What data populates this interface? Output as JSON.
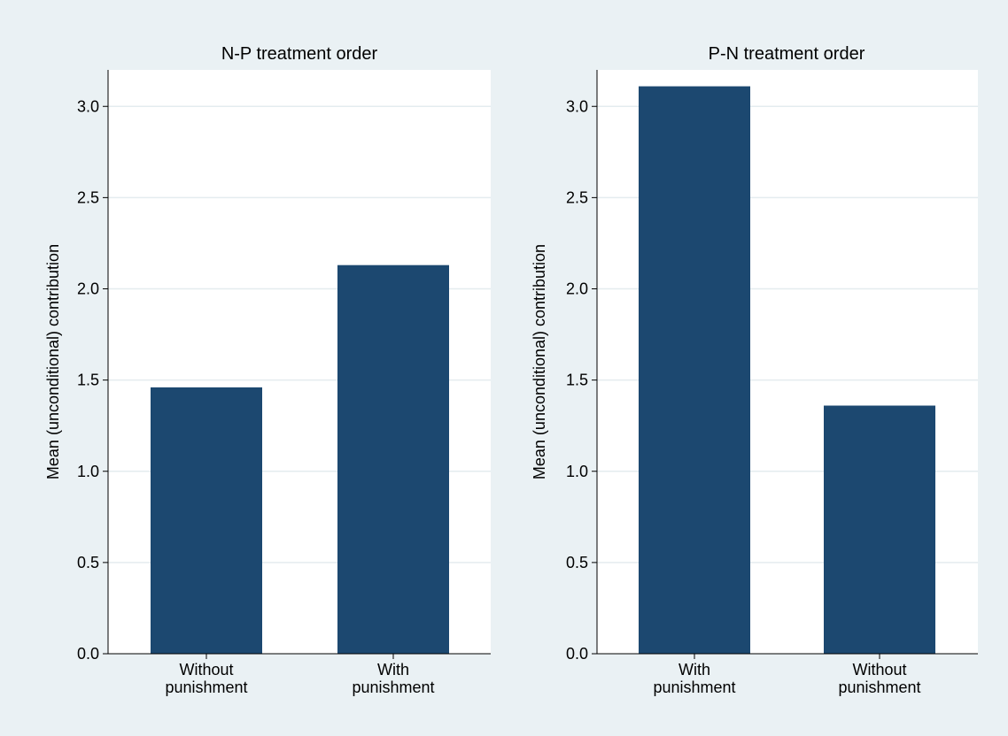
{
  "style": {
    "outer_background": "#eaf1f4",
    "plot_background": "#ffffff",
    "bar_color": "#1c4870",
    "grid_color": "#e4ecef",
    "axis_color": "#000000"
  },
  "chart_data": [
    {
      "type": "bar",
      "title": "N-P treatment order",
      "ylabel": "Mean (unconditional) contribution",
      "xlabel": "",
      "categories": [
        [
          "Without",
          "punishment"
        ],
        [
          "With",
          "punishment"
        ]
      ],
      "values": [
        1.46,
        2.13
      ],
      "ylim": [
        0,
        3.2
      ],
      "yticks": [
        "0.0",
        "0.5",
        "1.0",
        "1.5",
        "2.0",
        "2.5",
        "3.0"
      ],
      "ytick_values": [
        0,
        0.5,
        1,
        1.5,
        2,
        2.5,
        3
      ],
      "grid": true,
      "legend": "none"
    },
    {
      "type": "bar",
      "title": "P-N treatment order",
      "ylabel": "Mean (unconditional) contribution",
      "xlabel": "",
      "categories": [
        [
          "With",
          "punishment"
        ],
        [
          "Without",
          "punishment"
        ]
      ],
      "values": [
        3.11,
        1.36
      ],
      "ylim": [
        0,
        3.2
      ],
      "yticks": [
        "0.0",
        "0.5",
        "1.0",
        "1.5",
        "2.0",
        "2.5",
        "3.0"
      ],
      "ytick_values": [
        0,
        0.5,
        1,
        1.5,
        2,
        2.5,
        3
      ],
      "grid": true,
      "legend": "none"
    }
  ]
}
